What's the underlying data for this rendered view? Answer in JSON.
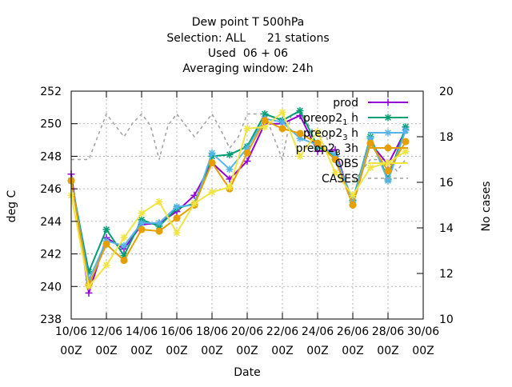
{
  "chart_data": {
    "type": "line",
    "title_lines": [
      "Dew point T 500hPa",
      "Selection: ALL      21 stations",
      "Used  06 + 06",
      "Averaging window: 24h"
    ],
    "xlabel": "Date",
    "ylabel": "deg C",
    "y2label": "No cases",
    "x_tick_labels": [
      {
        "date": "10/06",
        "hour": "00Z"
      },
      {
        "date": "12/06",
        "hour": "00Z"
      },
      {
        "date": "14/06",
        "hour": "00Z"
      },
      {
        "date": "16/06",
        "hour": "00Z"
      },
      {
        "date": "18/06",
        "hour": "00Z"
      },
      {
        "date": "20/06",
        "hour": "00Z"
      },
      {
        "date": "22/06",
        "hour": "00Z"
      },
      {
        "date": "24/06",
        "hour": "00Z"
      },
      {
        "date": "26/06",
        "hour": "00Z"
      },
      {
        "date": "28/06",
        "hour": "00Z"
      },
      {
        "date": "30/06",
        "hour": "00Z"
      }
    ],
    "xlim_days": [
      10,
      30
    ],
    "ylim": [
      238,
      252
    ],
    "y_ticks": [
      238,
      240,
      242,
      244,
      246,
      248,
      250,
      252
    ],
    "y2lim": [
      10,
      20
    ],
    "y2_ticks": [
      10,
      12,
      14,
      16,
      18,
      20
    ],
    "grid": true,
    "legend_position": "top-right",
    "series": [
      {
        "name": "prod",
        "axis": "y1",
        "color": "#9400d3",
        "dash": false,
        "marker": "plus",
        "x": [
          10,
          11,
          12,
          13,
          14,
          15,
          16,
          17,
          18,
          19,
          20,
          21,
          22,
          23,
          24,
          25,
          26,
          27,
          28,
          29
        ],
        "y": [
          246.9,
          239.6,
          243.0,
          242.3,
          243.8,
          243.9,
          244.6,
          245.6,
          247.6,
          246.6,
          247.7,
          250.0,
          250.0,
          250.5,
          248.3,
          248.4,
          245.0,
          248.8,
          247.5,
          249.6
        ]
      },
      {
        "name": "preop2_1h",
        "label_main": "preop2",
        "label_sub": "1",
        "label_rest": "h",
        "axis": "y1",
        "color": "#009e73",
        "dash": false,
        "marker": "star",
        "x": [
          10,
          11,
          12,
          13,
          14,
          15,
          16,
          17,
          18,
          19,
          20,
          21,
          22,
          23,
          24,
          25,
          26,
          27,
          28,
          29
        ],
        "y": [
          246.5,
          240.9,
          243.5,
          241.9,
          244.1,
          243.7,
          244.8,
          245.1,
          248.0,
          248.1,
          248.6,
          250.6,
          250.2,
          250.8,
          248.6,
          248.0,
          245.3,
          249.2,
          246.6,
          249.8
        ]
      },
      {
        "name": "preop2_3h",
        "label_main": "preop2",
        "label_sub": "3",
        "label_rest": "h",
        "axis": "y1",
        "color": "#56b4e9",
        "dash": false,
        "marker": "star",
        "x": [
          10,
          11,
          12,
          13,
          14,
          15,
          16,
          17,
          18,
          19,
          20,
          21,
          22,
          23,
          24,
          25,
          26,
          27,
          28,
          29
        ],
        "y": [
          246.5,
          240.4,
          242.8,
          242.5,
          243.9,
          243.9,
          244.9,
          245.0,
          248.2,
          247.2,
          248.5,
          250.3,
          250.1,
          249.1,
          248.7,
          248.1,
          245.2,
          249.1,
          246.5,
          249.6
        ]
      },
      {
        "name": "preop2_B_3h",
        "label_main": "preop2",
        "label_sub": "B",
        "label_rest": "3h",
        "axis": "y1",
        "color": "#e69f00",
        "dash": false,
        "marker": "circle",
        "x": [
          10,
          11,
          12,
          13,
          14,
          15,
          16,
          17,
          18,
          19,
          20,
          21,
          22,
          23,
          24,
          25,
          26,
          27,
          28,
          29
        ],
        "y": [
          246.5,
          240.1,
          242.6,
          241.6,
          243.5,
          243.4,
          244.2,
          245.0,
          247.6,
          246.0,
          248.2,
          250.2,
          249.7,
          249.4,
          248.8,
          247.8,
          245.0,
          248.8,
          247.1,
          248.9
        ]
      },
      {
        "name": "OBS",
        "axis": "y1",
        "color": "#f0e442",
        "dash": false,
        "marker": "star",
        "x": [
          10,
          11,
          12,
          13,
          14,
          15,
          16,
          17,
          18,
          19,
          20,
          21,
          22,
          23,
          24,
          25,
          26,
          27,
          28,
          29
        ],
        "y": [
          245.6,
          240.0,
          241.3,
          243.0,
          244.5,
          245.2,
          243.3,
          245.1,
          245.8,
          246.1,
          249.7,
          249.8,
          250.7,
          248.0,
          249.5,
          247.0,
          245.6,
          247.3,
          247.6,
          248.3
        ]
      },
      {
        "name": "CASES",
        "axis": "y2",
        "color": "#a0a0a0",
        "dash": true,
        "marker": "none",
        "x": [
          10,
          10.5,
          11,
          11.5,
          12,
          12.5,
          13,
          13.5,
          14,
          14.5,
          15,
          15.5,
          16,
          16.5,
          17,
          17.5,
          18,
          18.5,
          19,
          19.5,
          20,
          20.5,
          21,
          21.5,
          22,
          22.5,
          23,
          23.5,
          24,
          24.5,
          25,
          25.5,
          26,
          26.5,
          27,
          27.5,
          28,
          28.5,
          29
        ],
        "y": [
          17.0,
          17.0,
          17.0,
          18.0,
          19.0,
          18.5,
          18.0,
          18.6,
          19.0,
          18.5,
          17.0,
          18.5,
          19.0,
          18.5,
          18.0,
          18.5,
          19.0,
          18.3,
          17.5,
          18.0,
          19.0,
          19.0,
          19.0,
          18.0,
          17.0,
          19.0,
          19.0,
          18.5,
          18.0,
          18.0,
          17.0,
          16.0,
          16.0,
          16.5,
          17.0,
          17.0,
          17.0,
          16.5,
          17.0
        ]
      }
    ]
  }
}
